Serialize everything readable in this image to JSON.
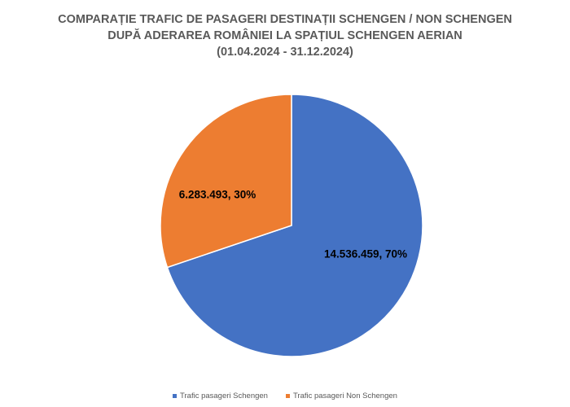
{
  "chart_data": {
    "type": "pie",
    "title_lines": [
      "COMPARAȚIE TRAFIC DE PASAGERI DESTINAȚII SCHENGEN / NON SCHENGEN",
      "DUPĂ ADERAREA ROMÂNIEI LA SPAȚIUL SCHENGEN AERIAN",
      "(01.04.2024 - 31.12.2024)"
    ],
    "slices": [
      {
        "name": "Trafic pasageri Schengen",
        "value": 14536459,
        "percent": 70,
        "data_label": "14.536.459, 70%",
        "color": "#4472C4"
      },
      {
        "name": "Trafic pasageri Non Schengen",
        "value": 6283493,
        "percent": 30,
        "data_label": "6.283.493, 30%",
        "color": "#ED7D31"
      }
    ],
    "start_angle": "12 o'clock",
    "direction": "clockwise",
    "legend_position": "bottom",
    "title_color": "#595959",
    "slice_border_color": "#FFFFFF"
  }
}
